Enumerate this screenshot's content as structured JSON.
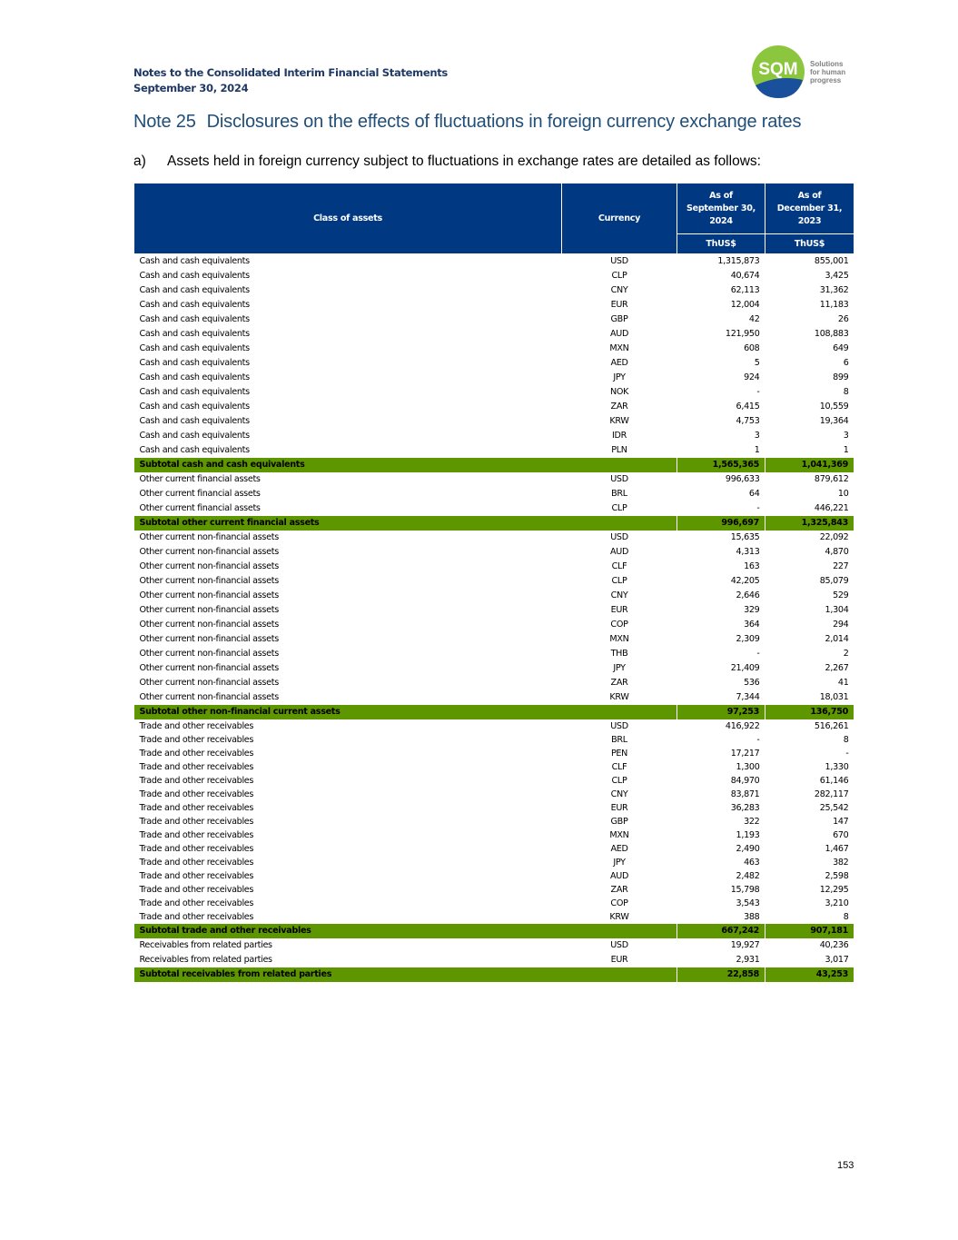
{
  "header": {
    "line1": "Notes to the Consolidated Interim Financial Statements",
    "line2": "September 30, 2024"
  },
  "logo": {
    "brand": "SQM",
    "tagline": "Solutions for human progress",
    "colors": {
      "green": "#8cc63f",
      "blue": "#1a4f9c"
    }
  },
  "note": {
    "number": "Note 25",
    "title": "Disclosures on the effects of fluctuations in foreign currency exchange rates"
  },
  "section": {
    "label": "a)",
    "text": "Assets held in foreign currency subject to fluctuations in exchange rates are detailed as follows:"
  },
  "table": {
    "headers": {
      "class": "Class of assets",
      "currency": "Currency",
      "col1": "As of September 30, 2024",
      "col2": "As of December 31, 2023",
      "unit1": "ThUS$",
      "unit2": "ThUS$"
    },
    "colors": {
      "header": "#003882",
      "subtotal": "#5e9600"
    },
    "sections": [
      {
        "rows": [
          [
            "Cash and cash equivalents",
            "USD",
            "1,315,873",
            "855,001"
          ],
          [
            "Cash and cash equivalents",
            "CLP",
            "40,674",
            "3,425"
          ],
          [
            "Cash and cash equivalents",
            "CNY",
            "62,113",
            "31,362"
          ],
          [
            "Cash and cash equivalents",
            "EUR",
            "12,004",
            "11,183"
          ],
          [
            "Cash and cash equivalents",
            "GBP",
            "42",
            "26"
          ],
          [
            "Cash and cash equivalents",
            "AUD",
            "121,950",
            "108,883"
          ],
          [
            "Cash and cash equivalents",
            "MXN",
            "608",
            "649"
          ],
          [
            "Cash and cash equivalents",
            "AED",
            "5",
            "6"
          ],
          [
            "Cash and cash equivalents",
            "JPY",
            "924",
            "899"
          ],
          [
            "Cash and cash equivalents",
            "NOK",
            "-",
            "8"
          ],
          [
            "Cash and cash equivalents",
            "ZAR",
            "6,415",
            "10,559"
          ],
          [
            "Cash and cash equivalents",
            "KRW",
            "4,753",
            "19,364"
          ],
          [
            "Cash and cash equivalents",
            "IDR",
            "3",
            "3"
          ],
          [
            "Cash and cash equivalents",
            "PLN",
            "1",
            "1"
          ]
        ],
        "subtotal": [
          "Subtotal cash and cash equivalents",
          "1,565,365",
          "1,041,369"
        ]
      },
      {
        "rows": [
          [
            "Other current financial assets",
            "USD",
            "996,633",
            "879,612"
          ],
          [
            "Other current financial assets",
            "BRL",
            "64",
            "10"
          ],
          [
            "Other current financial assets",
            "CLP",
            "-",
            "446,221"
          ]
        ],
        "subtotal": [
          "Subtotal other current financial assets",
          "996,697",
          "1,325,843"
        ]
      },
      {
        "rows": [
          [
            "Other current non-financial assets",
            "USD",
            "15,635",
            "22,092"
          ],
          [
            "Other current non-financial assets",
            "AUD",
            "4,313",
            "4,870"
          ],
          [
            "Other current non-financial assets",
            "CLF",
            "163",
            "227"
          ],
          [
            "Other current non-financial assets",
            "CLP",
            "42,205",
            "85,079"
          ],
          [
            "Other current non-financial assets",
            "CNY",
            "2,646",
            "529"
          ],
          [
            "Other current non-financial assets",
            "EUR",
            "329",
            "1,304"
          ],
          [
            "Other current non-financial assets",
            "COP",
            "364",
            "294"
          ],
          [
            "Other current non-financial assets",
            "MXN",
            "2,309",
            "2,014"
          ],
          [
            "Other current non-financial assets",
            "THB",
            "-",
            "2"
          ],
          [
            "Other current non-financial assets",
            "JPY",
            "21,409",
            "2,267"
          ],
          [
            "Other current non-financial assets",
            "ZAR",
            "536",
            "41"
          ],
          [
            "Other current non-financial assets",
            "KRW",
            "7,344",
            "18,031"
          ]
        ],
        "subtotal": [
          "Subtotal other non-financial current assets",
          "97,253",
          "136,750"
        ]
      },
      {
        "rows": [
          [
            "Trade and other receivables",
            "USD",
            "416,922",
            "516,261"
          ],
          [
            "Trade and other receivables",
            "BRL",
            "-",
            "8"
          ],
          [
            "Trade and other receivables",
            "PEN",
            "17,217",
            "-"
          ],
          [
            "Trade and other receivables",
            "CLF",
            "1,300",
            "1,330"
          ],
          [
            "Trade and other receivables",
            "CLP",
            "84,970",
            "61,146"
          ],
          [
            "Trade and other receivables",
            "CNY",
            "83,871",
            "282,117"
          ],
          [
            "Trade and other receivables",
            "EUR",
            "36,283",
            "25,542"
          ],
          [
            "Trade and other receivables",
            "GBP",
            "322",
            "147"
          ],
          [
            "Trade and other receivables",
            "MXN",
            "1,193",
            "670"
          ],
          [
            "Trade and other receivables",
            "AED",
            "2,490",
            "1,467"
          ],
          [
            "Trade and other receivables",
            "JPY",
            "463",
            "382"
          ],
          [
            "Trade and other receivables",
            "AUD",
            "2,482",
            "2,598"
          ],
          [
            "Trade and other receivables",
            "ZAR",
            "15,798",
            "12,295"
          ],
          [
            "Trade and other receivables",
            "COP",
            "3,543",
            "3,210"
          ],
          [
            "Trade and other receivables",
            "KRW",
            "388",
            "8"
          ]
        ],
        "subtotal": [
          "Subtotal trade and other receivables",
          "667,242",
          "907,181"
        ]
      },
      {
        "rows": [
          [
            "Receivables from related parties",
            "USD",
            "19,927",
            "40,236"
          ],
          [
            "Receivables from related parties",
            "EUR",
            "2,931",
            "3,017"
          ]
        ],
        "subtotal": [
          "Subtotal receivables from related parties",
          "22,858",
          "43,253"
        ]
      }
    ]
  },
  "page_number": "153"
}
